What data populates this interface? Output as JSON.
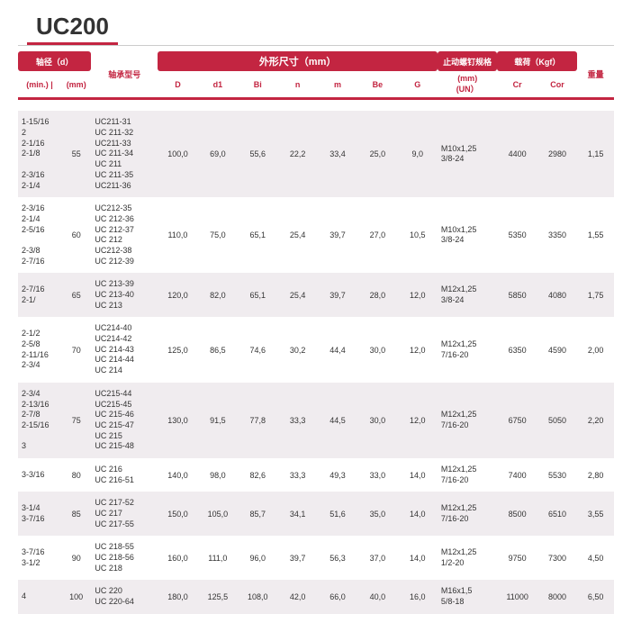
{
  "title": "UC200",
  "colors": {
    "brand": "#c32541",
    "alt_row_bg": "#f0ecef"
  },
  "header": {
    "top": {
      "shaft_dia": "轴径（d）",
      "model": "轴承型号",
      "outer_dims": "外形尺寸（mm）",
      "bolt": "止动螺钉规格",
      "load": "载荷（Kgf）",
      "weight": "重量"
    },
    "sub": {
      "min": "(min.)",
      "sep": " | ",
      "mm": "(mm)",
      "D": "D",
      "d1": "d1",
      "Bi": "Bi",
      "n": "n",
      "m": "m",
      "Be": "Be",
      "G": "G",
      "bolt": "(mm)\n(UN）",
      "Cr": "Cr",
      "Cor": "Cor"
    }
  },
  "rows": [
    {
      "min": "1-15/16\n2\n2-1/16\n2-1/8\n\n2-3/16\n2-1/4",
      "mm": "55",
      "model": "UC211-31\nUC 211-32\nUC211-33\nUC 211-34\nUC 211\nUC 211-35\nUC211-36",
      "D": "100,0",
      "d1": "69,0",
      "Bi": "55,6",
      "n": "22,2",
      "m": "33,4",
      "Be": "25,0",
      "G": "9,0",
      "bolt": "M10x1,25\n3/8-24",
      "Cr": "4400",
      "Cor": "2980",
      "wt": "1,15"
    },
    {
      "min": "2-3/16\n2-1/4\n2-5/16\n\n2-3/8\n2-7/16",
      "mm": "60",
      "model": "UC212-35\nUC 212-36\nUC 212-37\nUC 212\nUC212-38\nUC 212-39",
      "D": "110,0",
      "d1": "75,0",
      "Bi": "65,1",
      "n": "25,4",
      "m": "39,7",
      "Be": "27,0",
      "G": "10,5",
      "bolt": "M10x1,25\n3/8-24",
      "Cr": "5350",
      "Cor": "3350",
      "wt": "1,55"
    },
    {
      "min": "2-7/16\n2-1/",
      "mm": "65",
      "model": "UC 213-39\nUC 213-40\nUC 213",
      "D": "120,0",
      "d1": "82,0",
      "Bi": "65,1",
      "n": "25,4",
      "m": "39,7",
      "Be": "28,0",
      "G": "12,0",
      "bolt": "M12x1,25\n3/8-24",
      "Cr": "5850",
      "Cor": "4080",
      "wt": "1,75"
    },
    {
      "min": "2-1/2\n2-5/8\n2-11/16\n2-3/4",
      "mm": "70",
      "model": "UC214-40\nUC214-42\nUC 214-43\nUC 214-44\nUC 214",
      "D": "125,0",
      "d1": "86,5",
      "Bi": "74,6",
      "n": "30,2",
      "m": "44,4",
      "Be": "30,0",
      "G": "12,0",
      "bolt": "M12x1,25\n7/16-20",
      "Cr": "6350",
      "Cor": "4590",
      "wt": "2,00"
    },
    {
      "min": "2-3/4\n2-13/16\n2-7/8\n2-15/16\n\n3",
      "mm": "75",
      "model": "UC215-44\nUC215-45\nUC 215-46\nUC 215-47\nUC 215\nUC 215-48",
      "D": "130,0",
      "d1": "91,5",
      "Bi": "77,8",
      "n": "33,3",
      "m": "44,5",
      "Be": "30,0",
      "G": "12,0",
      "bolt": "M12x1,25\n7/16-20",
      "Cr": "6750",
      "Cor": "5050",
      "wt": "2,20"
    },
    {
      "min": "3-3/16",
      "mm": "80",
      "model": "UC 216\nUC 216-51",
      "D": "140,0",
      "d1": "98,0",
      "Bi": "82,6",
      "n": "33,3",
      "m": "49,3",
      "Be": "33,0",
      "G": "14,0",
      "bolt": "M12x1,25\n7/16-20",
      "Cr": "7400",
      "Cor": "5530",
      "wt": "2,80"
    },
    {
      "min": "3-1/4\n3-7/16",
      "mm": "85",
      "model": "UC 217-52\nUC 217\nUC 217-55",
      "D": "150,0",
      "d1": "105,0",
      "Bi": "85,7",
      "n": "34,1",
      "m": "51,6",
      "Be": "35,0",
      "G": "14,0",
      "bolt": "M12x1,25\n7/16-20",
      "Cr": "8500",
      "Cor": "6510",
      "wt": "3,55"
    },
    {
      "min": "3-7/16\n3-1/2",
      "mm": "90",
      "model": "UC 218-55\nUC 218-56\nUC 218",
      "D": "160,0",
      "d1": "111,0",
      "Bi": "96,0",
      "n": "39,7",
      "m": "56,3",
      "Be": "37,0",
      "G": "14,0",
      "bolt": "M12x1,25\n1/2-20",
      "Cr": "9750",
      "Cor": "7300",
      "wt": "4,50"
    },
    {
      "min": "4",
      "mm": "100",
      "model": "UC 220\nUC 220-64",
      "D": "180,0",
      "d1": "125,5",
      "Bi": "108,0",
      "n": "42,0",
      "m": "66,0",
      "Be": "40,0",
      "G": "16,0",
      "bolt": "M16x1,5\n5/8-18",
      "Cr": "11000",
      "Cor": "8000",
      "wt": "6,50"
    }
  ]
}
